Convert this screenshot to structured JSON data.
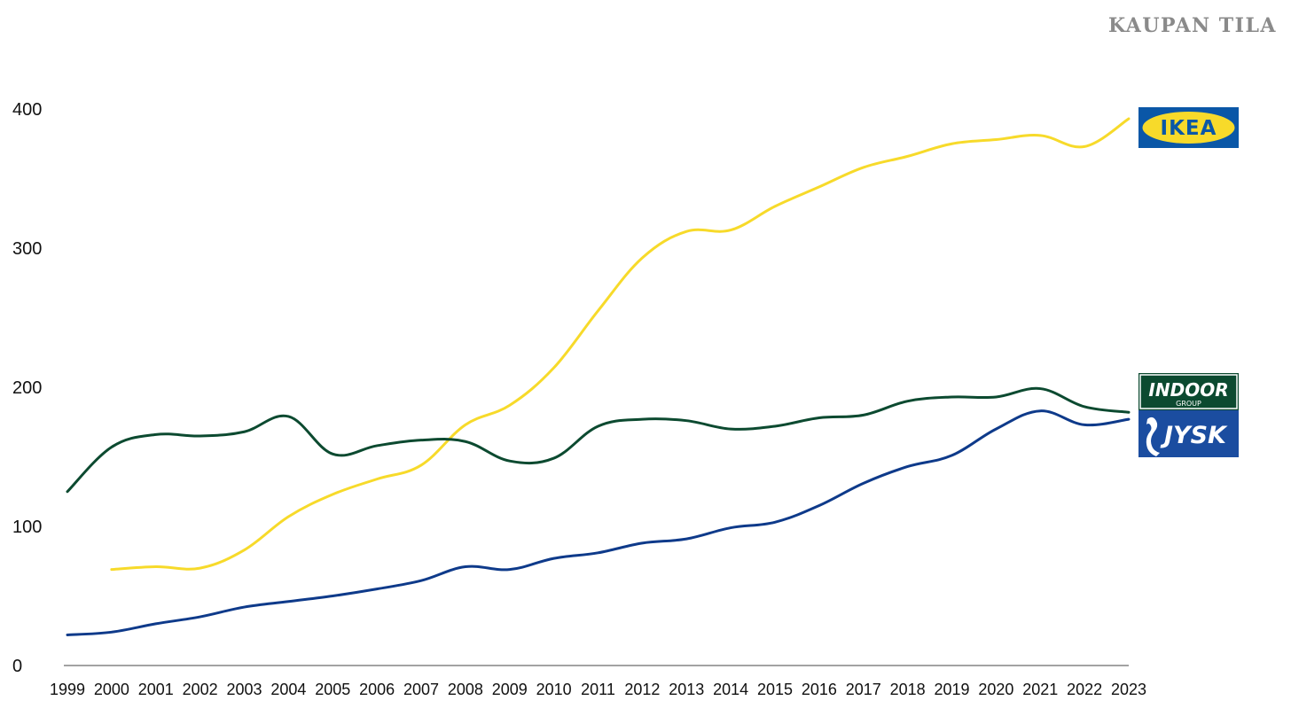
{
  "header": {
    "brand": "KAUPAN TILA"
  },
  "colors": {
    "ikea": "#F7DA2A",
    "indoor": "#0C4A30",
    "jysk": "#0E3A8A",
    "ikea_blue": "#0A57A7",
    "jysk_blue": "#1B4DA0",
    "axis": "#444444"
  },
  "chart_data": {
    "type": "line",
    "title": "",
    "xlabel": "",
    "ylabel": "",
    "x": [
      1999,
      2000,
      2001,
      2002,
      2003,
      2004,
      2005,
      2006,
      2007,
      2008,
      2009,
      2010,
      2011,
      2012,
      2013,
      2014,
      2015,
      2016,
      2017,
      2018,
      2019,
      2020,
      2021,
      2022,
      2023
    ],
    "ylim": [
      0,
      400
    ],
    "yticks": [
      0,
      100,
      200,
      300,
      400
    ],
    "grid": false,
    "legend": "logos at right end of lines",
    "series": [
      {
        "name": "IKEA",
        "color": "#F7DA2A",
        "values": [
          null,
          69,
          71,
          70,
          83,
          107,
          123,
          134,
          144,
          173,
          187,
          214,
          255,
          293,
          312,
          313,
          330,
          344,
          358,
          366,
          375,
          378,
          381,
          373,
          393
        ]
      },
      {
        "name": "INDOOR GROUP",
        "color": "#0C4A30",
        "values": [
          125,
          157,
          166,
          165,
          168,
          179,
          152,
          158,
          162,
          161,
          147,
          149,
          172,
          177,
          176,
          170,
          172,
          178,
          180,
          190,
          193,
          193,
          199,
          186,
          182
        ]
      },
      {
        "name": "JYSK",
        "color": "#0E3A8A",
        "values": [
          22,
          24,
          30,
          35,
          42,
          46,
          50,
          55,
          61,
          71,
          69,
          77,
          81,
          88,
          91,
          99,
          103,
          115,
          131,
          143,
          151,
          170,
          183,
          173,
          177
        ]
      }
    ]
  },
  "logos": {
    "ikea": {
      "text": "IKEA"
    },
    "indoor": {
      "text": "INDOOR",
      "sub": "GROUP"
    },
    "jysk": {
      "text": "JYSK"
    }
  }
}
